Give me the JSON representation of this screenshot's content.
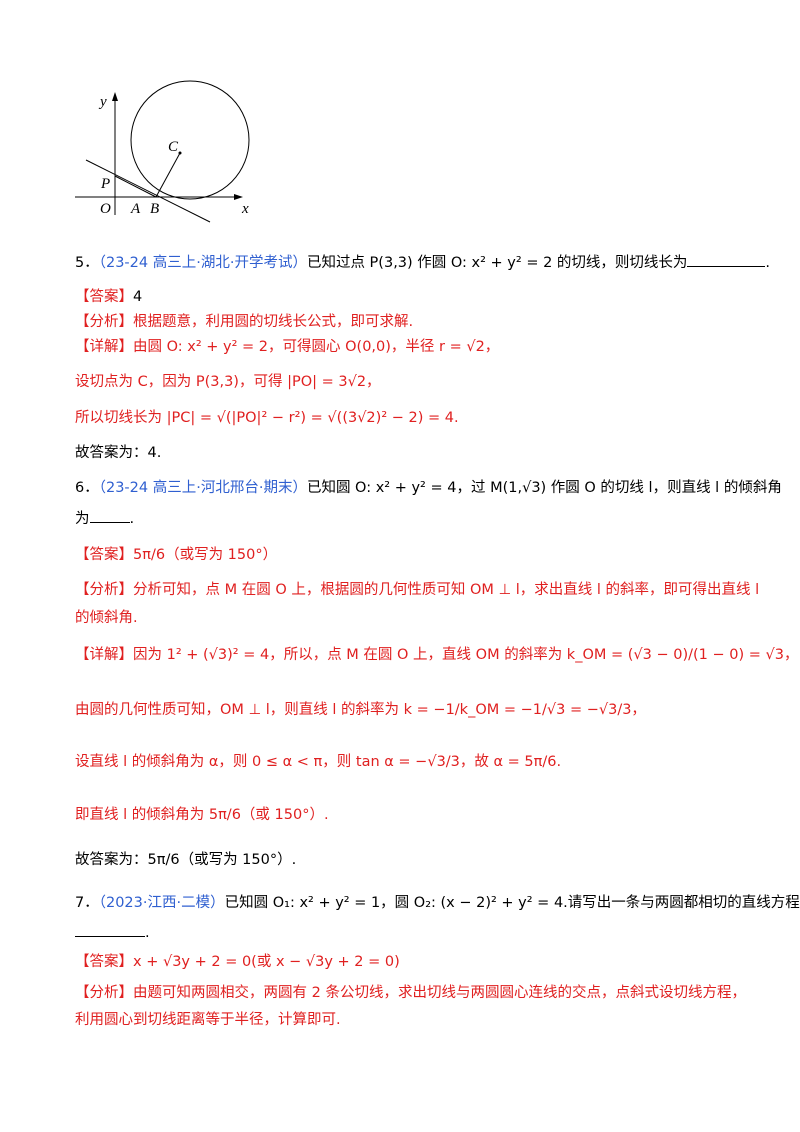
{
  "figure": {
    "labels": {
      "y": "y",
      "c": "C",
      "p": "P",
      "o": "O",
      "a": "A",
      "b": "B",
      "x": "x"
    }
  },
  "q5": {
    "number": "5．",
    "source": "（23-24 高三上·湖北·开学考试）",
    "stem": "已知过点 P(3,3) 作圆 O: x² + y² = 2 的切线，则切线长为",
    "end": ".",
    "answer_tag": "【答案】",
    "answer": "4",
    "analysis_tag": "【分析】",
    "analysis": "根据题意，利用圆的切线长公式，即可求解.",
    "detail_tag": "【详解】",
    "detail": [
      "由圆 O: x² + y² = 2，可得圆心 O(0,0)，半径 r = √2，",
      "设切点为 C，因为 P(3,3)，可得 |PO| = 3√2，",
      "所以切线长为 |PC| = √(|PO|² − r²) = √((3√2)² − 2) = 4."
    ],
    "final": "故答案为：4."
  },
  "q6": {
    "number": "6．",
    "source": "（23-24 高三上·河北邢台·期末）",
    "stem": "已知圆 O: x² + y² = 4，过 M(1,√3) 作圆 O 的切线 l，则直线 l 的倾斜角",
    "stem2": "为",
    "end": ".",
    "answer_tag": "【答案】",
    "answer": "5π/6（或写为 150°）",
    "analysis_tag": "【分析】",
    "analysis": [
      "分析可知，点 M 在圆 O 上，根据圆的几何性质可知 OM ⊥ l，求出直线 l 的斜率，即可得出直线 l",
      "的倾斜角."
    ],
    "detail_tag": "【详解】",
    "detail": [
      "因为 1² + (√3)² = 4，所以，点 M 在圆 O 上，直线 OM 的斜率为 k_OM = (√3 − 0)/(1 − 0) = √3，",
      "由圆的几何性质可知，OM ⊥ l，则直线 l 的斜率为 k = −1/k_OM = −1/√3 = −√3/3，",
      "设直线 l 的倾斜角为 α，则 0 ≤ α < π，则 tan α = −√3/3，故 α = 5π/6.",
      "即直线 l 的倾斜角为 5π/6（或 150°）."
    ],
    "final": "故答案为：5π/6（或写为 150°）."
  },
  "q7": {
    "number": "7．",
    "source": "（2023·江西·二模）",
    "stem": "已知圆 O₁: x² + y² = 1，圆 O₂: (x − 2)² + y² = 4.请写出一条与两圆都相切的直线方程：",
    "end": ".",
    "answer_tag": "【答案】",
    "answer": "x + √3y + 2 = 0(或 x − √3y + 2 = 0)",
    "analysis_tag": "【分析】",
    "analysis": [
      "由题可知两圆相交，两圆有 2 条公切线，求出切线与两圆圆心连线的交点，点斜式设切线方程，",
      "利用圆心到切线距离等于半径，计算即可."
    ]
  }
}
